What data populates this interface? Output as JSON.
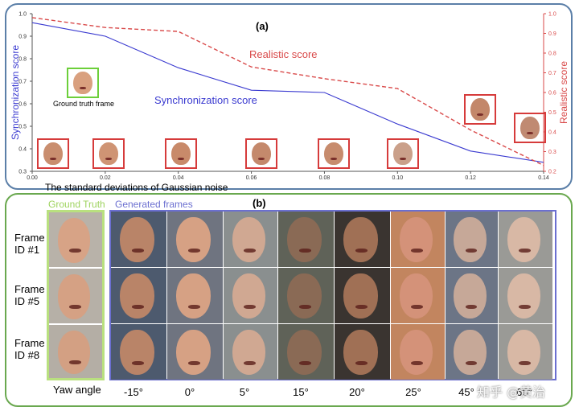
{
  "panel_a": {
    "label": "(a)",
    "ground_truth_caption": "Ground truth frame"
  },
  "panel_b": {
    "label": "(b)",
    "legend_gt": "Ground Truth",
    "legend_generated": "Generated frames",
    "row_labels": [
      "Frame\nID #1",
      "Frame\nID #5",
      "Frame\nID #8"
    ],
    "yaw_label": "Yaw angle",
    "yaw_angles": [
      "-15°",
      "0°",
      "5°",
      "15°",
      "20°",
      "25°",
      "45°",
      "65°"
    ]
  },
  "watermark": "知乎 @黄治",
  "chart_data": {
    "type": "line",
    "title": "",
    "xlabel": "The standard deviations of Gaussian noise",
    "ylabel_left": "Synchronization score",
    "ylabel_right": "Realistic score",
    "xlim": [
      0,
      0.14
    ],
    "ylim_left": [
      0.3,
      1.0
    ],
    "ylim_right": [
      0.2,
      1.0
    ],
    "x_ticks": [
      "0.00",
      "0.02",
      "0.04",
      "0.06",
      "0.08",
      "0.10",
      "0.12",
      "0.14"
    ],
    "y_ticks_left": [
      "0.3",
      "0.4",
      "0.5",
      "0.6",
      "0.7",
      "0.8",
      "0.9",
      "1.0"
    ],
    "y_ticks_right": [
      "0.2",
      "0.3",
      "0.4",
      "0.5",
      "0.6",
      "0.7",
      "0.8",
      "0.9",
      "1.0"
    ],
    "colors": {
      "sync": "#3a3ad0",
      "real": "#d94a4a",
      "axis": "#555555"
    },
    "series": [
      {
        "name": "Synchronization score",
        "axis": "left",
        "style": "solid",
        "x": [
          0,
          0.02,
          0.04,
          0.06,
          0.08,
          0.1,
          0.12,
          0.14
        ],
        "values": [
          0.96,
          0.9,
          0.76,
          0.66,
          0.65,
          0.51,
          0.39,
          0.34
        ]
      },
      {
        "name": "Realistic score",
        "axis": "right",
        "style": "dashed",
        "x": [
          0,
          0.02,
          0.04,
          0.06,
          0.08,
          0.1,
          0.12,
          0.14
        ],
        "values": [
          0.98,
          0.93,
          0.91,
          0.73,
          0.67,
          0.62,
          0.41,
          0.23
        ]
      }
    ]
  }
}
